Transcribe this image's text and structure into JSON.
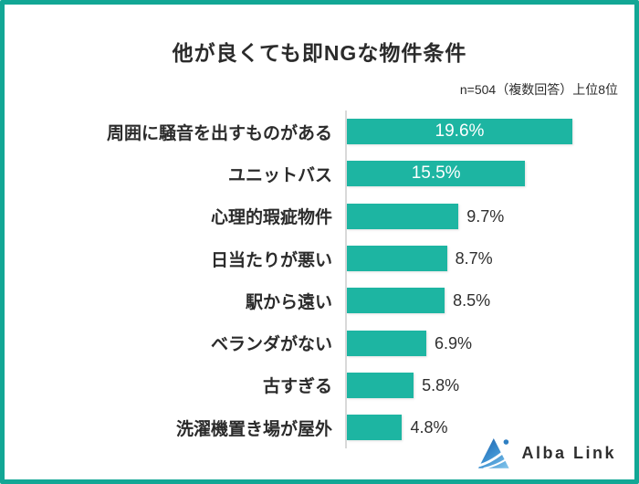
{
  "header": {
    "title": "他が良くても即NGな物件条件",
    "note": "n=504（複数回答）上位8位"
  },
  "chart_data": {
    "type": "bar",
    "orientation": "horizontal",
    "title": "他が良くても即NGな物件条件",
    "subtitle": "n=504（複数回答）上位8位",
    "xlabel": "",
    "ylabel": "",
    "xlim": [
      0,
      25
    ],
    "grid": false,
    "legend": "none",
    "bar_color": "#1db5a2",
    "categories": [
      "周囲に騒音を出すものがある",
      "ユニットバス",
      "心理的瑕疵物件",
      "日当たりが悪い",
      "駅から遠い",
      "ベランダがない",
      "古すぎる",
      "洗濯機置き場が屋外"
    ],
    "values": [
      19.6,
      15.5,
      9.7,
      8.7,
      8.5,
      6.9,
      5.8,
      4.8
    ],
    "items": [
      {
        "label": "周囲に騒音を出すものがある",
        "value": 19.6,
        "display": "19.6%",
        "value_label": "inside"
      },
      {
        "label": "ユニットバス",
        "value": 15.5,
        "display": "15.5%",
        "value_label": "inside"
      },
      {
        "label": "心理的瑕疵物件",
        "value": 9.7,
        "display": "9.7%",
        "value_label": "outside"
      },
      {
        "label": "日当たりが悪い",
        "value": 8.7,
        "display": "8.7%",
        "value_label": "outside"
      },
      {
        "label": "駅から遠い",
        "value": 8.5,
        "display": "8.5%",
        "value_label": "outside"
      },
      {
        "label": "ベランダがない",
        "value": 6.9,
        "display": "6.9%",
        "value_label": "outside"
      },
      {
        "label": "古すぎる",
        "value": 5.8,
        "display": "5.8%",
        "value_label": "outside"
      },
      {
        "label": "洗濯機置き場が屋外",
        "value": 4.8,
        "display": "4.8%",
        "value_label": "outside"
      }
    ]
  },
  "footer": {
    "logo_text": "Alba Link"
  },
  "colors": {
    "frame_border": "#12a795",
    "bar": "#1db5a2",
    "axis_line": "#d9d9d9",
    "text_dark": "#2b2b2b",
    "value_inside": "#ffffff",
    "logo_blue_dark": "#1a5da8",
    "logo_blue_light": "#6fbce8"
  }
}
